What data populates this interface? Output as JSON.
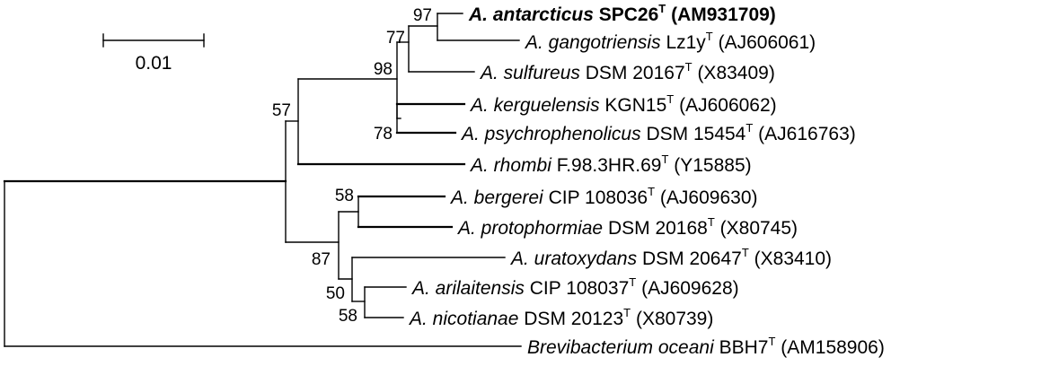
{
  "scale_bar": {
    "label": "0.01"
  },
  "taxa": [
    {
      "genus": "A. antarcticus",
      "strain": "SPC26",
      "type": "T",
      "accession": "(AM931709)",
      "bold": true
    },
    {
      "genus": "A. gangotriensis",
      "strain": "Lz1y",
      "type": "T",
      "accession": "(AJ606061)"
    },
    {
      "genus": "A. sulfureus",
      "strain": "DSM 20167",
      "type": "T",
      "accession": "(X83409)"
    },
    {
      "genus": "A. kerguelensis",
      "strain": "KGN15",
      "type": "T",
      "accession": "(AJ606062)"
    },
    {
      "genus": "A. psychrophenolicus",
      "strain": "DSM 15454",
      "type": "T",
      "accession": "(AJ616763)"
    },
    {
      "genus": "A. rhombi",
      "strain": "F.98.3HR.69",
      "type": "T",
      "accession": "(Y15885)"
    },
    {
      "genus": "A. bergerei",
      "strain": "CIP 108036",
      "type": "T",
      "accession": "(AJ609630)"
    },
    {
      "genus": "A. protophormiae",
      "strain": "DSM 20168",
      "type": "T",
      "accession": "(X80745)"
    },
    {
      "genus": "A. uratoxydans",
      "strain": "DSM 20647",
      "type": "T",
      "accession": "(X83410)"
    },
    {
      "genus": "A. arilaitensis",
      "strain": "CIP 108037",
      "type": "T",
      "accession": "(AJ609628)"
    },
    {
      "genus": "A. nicotianae",
      "strain": "DSM 20123",
      "type": "T",
      "accession": "(X80739)"
    },
    {
      "genus": "Brevibacterium oceani",
      "strain": "BBH7",
      "type": "T",
      "accession": "(AM158906)"
    }
  ],
  "bootstrap": {
    "n97": "97",
    "n77": "77",
    "n98": "98",
    "n57": "57",
    "n78": "78",
    "n58a": "58",
    "n87": "87",
    "n50": "50",
    "n58b": "58"
  }
}
